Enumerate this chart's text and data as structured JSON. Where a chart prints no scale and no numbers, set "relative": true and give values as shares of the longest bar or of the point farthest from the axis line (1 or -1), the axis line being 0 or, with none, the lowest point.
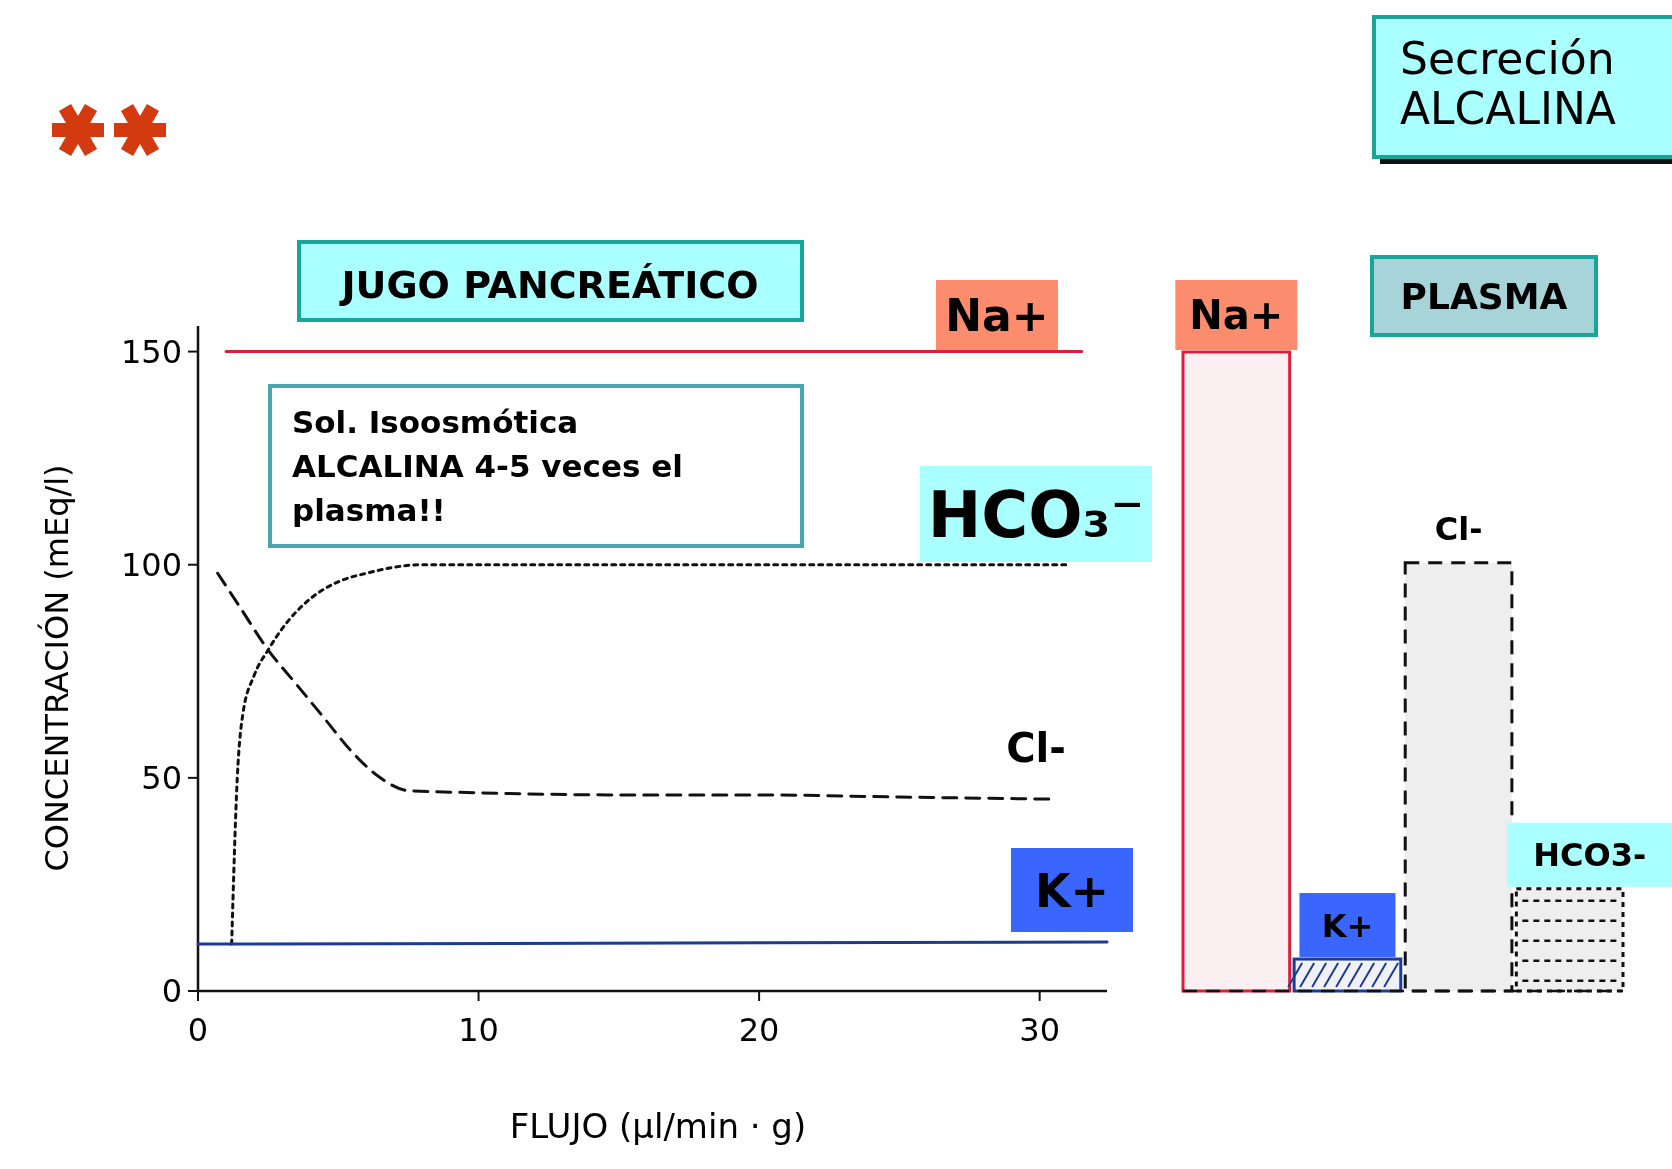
{
  "chart_data": [
    {
      "type": "line",
      "title": "JUGO PANCREÁTICO",
      "xlabel": "FLUJO (µl/min · g)",
      "ylabel": "CONCENTRACIÓN (mEq/l)",
      "annotations": [
        "Secreción ALCALINA",
        "Sol. Isoosmótica ALCALINA 4-5 veces el plasma!!"
      ],
      "xlim": [
        0,
        32.4
      ],
      "ylim": [
        0,
        156
      ],
      "xticks": [
        0,
        10,
        20,
        30
      ],
      "yticks": [
        0,
        50,
        100,
        150
      ],
      "grid": false,
      "series": [
        {
          "name": "Na+",
          "color": "#d9203a",
          "line_style": "solid",
          "x": [
            1,
            31.5
          ],
          "values": [
            150,
            150
          ]
        },
        {
          "name": "HCO₃⁻",
          "color": "#111111",
          "line_style": "dotted",
          "x": [
            1.2,
            1.4,
            1.6,
            2,
            2.5,
            3,
            4,
            5,
            6,
            8,
            12,
            20,
            31
          ],
          "values": [
            11,
            50,
            65,
            74,
            80,
            85,
            92,
            96,
            98,
            100,
            100,
            100,
            100
          ]
        },
        {
          "name": "Cl-",
          "color": "#111111",
          "line_style": "dashed",
          "x": [
            0.7,
            1.5,
            2.5,
            3.5,
            4.5,
            5.5,
            6.5,
            7.5,
            10,
            15,
            20,
            25,
            30.5
          ],
          "values": [
            98,
            90,
            80,
            72,
            64,
            56,
            50,
            47,
            46.5,
            46,
            46,
            45.5,
            45
          ]
        },
        {
          "name": "K+",
          "color": "#1f3a93",
          "line_style": "solid",
          "x": [
            0,
            32.4
          ],
          "values": [
            11,
            11.5
          ]
        }
      ]
    },
    {
      "type": "bar",
      "title": "PLASMA",
      "relative": true,
      "categories": [
        "Na+",
        "K+",
        "Cl-",
        "HCO3-"
      ],
      "values": [
        1,
        0.05,
        0.67,
        0.16
      ],
      "colors": [
        "#d9203a",
        "#1f3a93",
        "#111111",
        "#111111"
      ]
    }
  ]
}
